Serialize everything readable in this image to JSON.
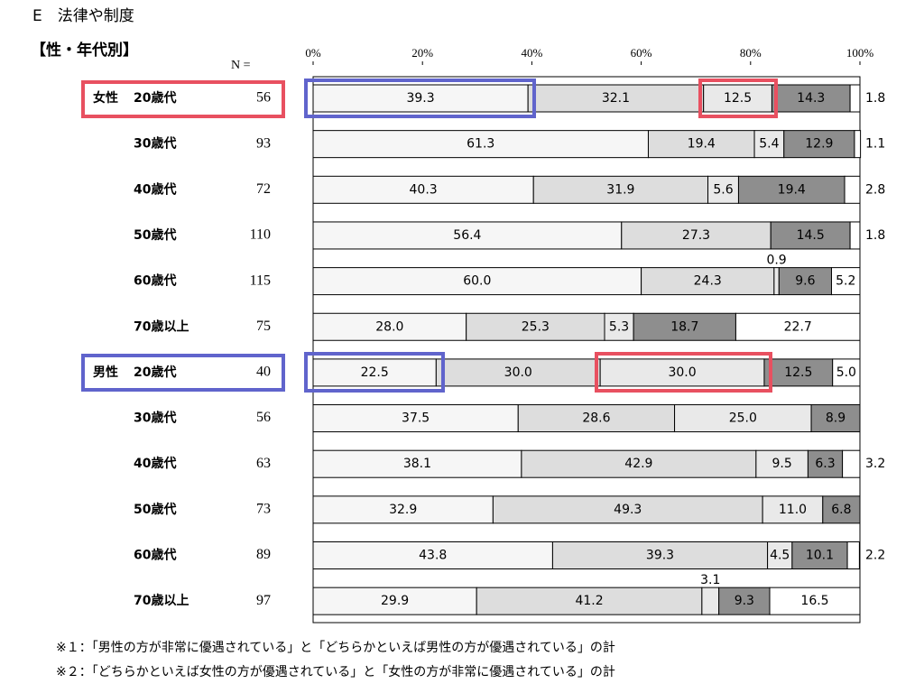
{
  "chart_data": {
    "type": "stacked-bar-horizontal",
    "title": "E　法律や制度",
    "subtitle": "【性・年代別】",
    "n_label": "N =",
    "group_labels": [
      "女性",
      null,
      null,
      null,
      null,
      null,
      "男性",
      null,
      null,
      null,
      null,
      null
    ],
    "categories": [
      "20歳代",
      "30歳代",
      "40歳代",
      "50歳代",
      "60歳代",
      "70歳以上",
      "20歳代",
      "30歳代",
      "40歳代",
      "50歳代",
      "60歳代",
      "70歳以上"
    ],
    "n": [
      56,
      93,
      72,
      110,
      115,
      75,
      40,
      56,
      63,
      73,
      89,
      97
    ],
    "xlim": [
      0,
      100
    ],
    "xticks": [
      {
        "value": 0,
        "label": "0%"
      },
      {
        "value": 20,
        "label": "20%"
      },
      {
        "value": 40,
        "label": "40%"
      },
      {
        "value": 60,
        "label": "60%"
      },
      {
        "value": 80,
        "label": "80%"
      },
      {
        "value": 100,
        "label": "100%"
      }
    ],
    "series": [
      {
        "color": "#f6f6f6",
        "values": [
          39.3,
          61.3,
          40.3,
          56.4,
          60.0,
          28.0,
          22.5,
          37.5,
          38.1,
          32.9,
          43.8,
          29.9
        ],
        "value_labels": [
          "39.3",
          "61.3",
          "40.3",
          "56.4",
          "60.0",
          "28.0",
          "22.5",
          "37.5",
          "38.1",
          "32.9",
          "43.8",
          "29.9"
        ]
      },
      {
        "color": "#dddddd",
        "values": [
          32.1,
          19.4,
          31.9,
          27.3,
          24.3,
          25.3,
          30.0,
          28.6,
          42.9,
          49.3,
          39.3,
          41.2
        ],
        "value_labels": [
          "32.1",
          "19.4",
          "31.9",
          "27.3",
          "24.3",
          "25.3",
          "30.0",
          "28.6",
          "42.9",
          "49.3",
          "39.3",
          "41.2"
        ]
      },
      {
        "color": "#e9e9e9",
        "values": [
          12.5,
          5.4,
          5.6,
          null,
          0.9,
          5.3,
          30.0,
          25.0,
          9.5,
          11.0,
          4.5,
          3.1
        ],
        "value_labels": [
          "12.5",
          "5.4",
          "5.6",
          null,
          "0.9",
          "5.3",
          "30.0",
          "25.0",
          "9.5",
          "11.0",
          "4.5",
          "3.1"
        ]
      },
      {
        "color": "#8e8e8e",
        "values": [
          14.3,
          12.9,
          19.4,
          14.5,
          9.6,
          18.7,
          12.5,
          8.9,
          6.3,
          6.8,
          10.1,
          9.3
        ],
        "value_labels": [
          "14.3",
          "12.9",
          "19.4",
          "14.5",
          "9.6",
          "18.7",
          "12.5",
          "8.9",
          "6.3",
          "6.8",
          "10.1",
          "9.3"
        ]
      },
      {
        "color": "#ffffff",
        "values": [
          1.8,
          1.1,
          2.8,
          1.8,
          5.2,
          22.7,
          5.0,
          null,
          3.2,
          null,
          2.2,
          16.5
        ],
        "value_labels": [
          "1.8",
          "1.1",
          "2.8",
          "1.8",
          "5.2",
          "22.7",
          "5.0",
          null,
          "3.2",
          null,
          "2.2",
          "16.5"
        ]
      }
    ],
    "notes": [
      "※１：「男性の方が非常に優遇されている」と「どちらかといえば男性の方が優遇されている」の計",
      "※２：「どちらかといえば女性の方が優遇されている」と「女性の方が非常に優遇されている」の計"
    ]
  }
}
